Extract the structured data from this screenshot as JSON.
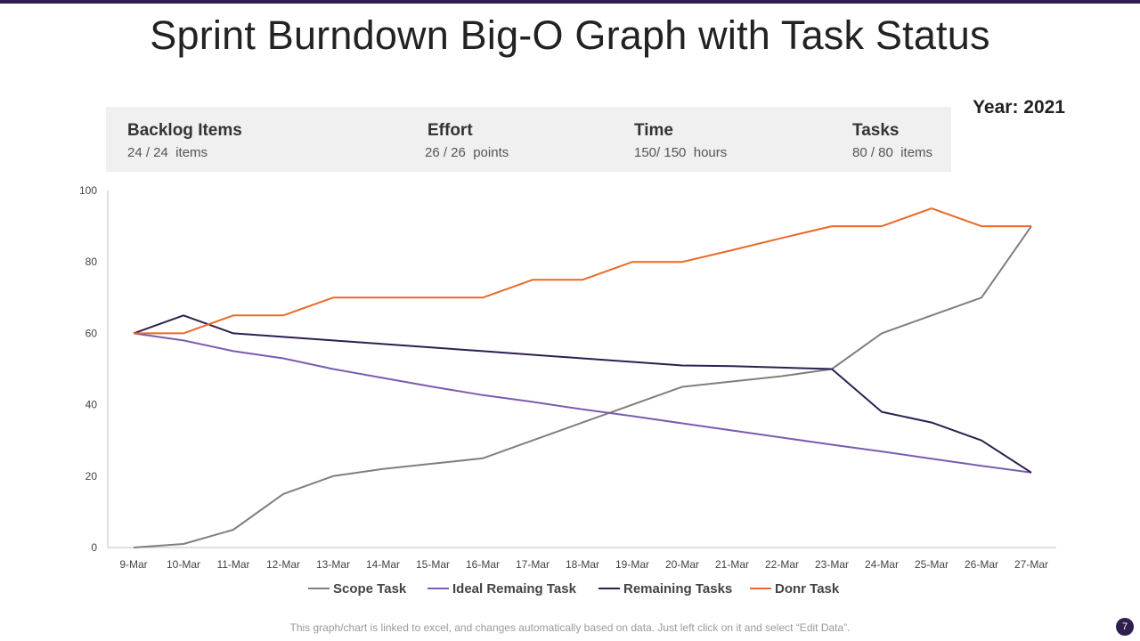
{
  "title": "Sprint Burndown Big-O Graph with Task Status",
  "year_label": "Year: 2021",
  "stats": [
    {
      "label": "Backlog Items",
      "value": "24 / 24  items"
    },
    {
      "label": "Effort",
      "value": "26 / 26  points"
    },
    {
      "label": "Time",
      "value": "150/ 150  hours"
    },
    {
      "label": "Tasks",
      "value": "80 / 80  items"
    }
  ],
  "footer_note": "This graph/chart is linked to excel, and changes automatically based on data. Just left click on it and select “Edit Data”.",
  "page_number": "7",
  "colors": {
    "accent": "#2e1f4f",
    "scope": "#7f7f7f",
    "ideal": "#7b5cb0",
    "remaining": "#2e1f4f",
    "done": "#e8692a"
  },
  "chart_data": {
    "type": "line",
    "title": "",
    "xlabel": "",
    "ylabel": "",
    "ylim": [
      0,
      100
    ],
    "yticks": [
      0,
      20,
      40,
      60,
      80,
      100
    ],
    "grid": false,
    "legend_position": "bottom",
    "categories": [
      "9-Mar",
      "10-Mar",
      "11-Mar",
      "12-Mar",
      "13-Mar",
      "14-Mar",
      "15-Mar",
      "16-Mar",
      "17-Mar",
      "18-Mar",
      "19-Mar",
      "20-Mar",
      "21-Mar",
      "22-Mar",
      "23-Mar",
      "24-Mar",
      "25-Mar",
      "26-Mar",
      "27-Mar"
    ],
    "series": [
      {
        "name": "Scope Task",
        "color": "#7f7f7f",
        "values": [
          0,
          1,
          5,
          15,
          20,
          22,
          23.5,
          25,
          30,
          35,
          40,
          45,
          46.5,
          48,
          50,
          60,
          65,
          70,
          90
        ]
      },
      {
        "name": "Ideal Remaing Task",
        "color": "#7b5cb0",
        "values": [
          60,
          58,
          55,
          53,
          50,
          47.5,
          45,
          42.7,
          40.8,
          38.7,
          36.8,
          34.8,
          32.8,
          30.8,
          28.8,
          26.9,
          24.9,
          22.9,
          21
        ]
      },
      {
        "name": "Remaining Tasks",
        "color": "#2e1f4f",
        "values": [
          60,
          65,
          60,
          59,
          58,
          57,
          56,
          55,
          54,
          53,
          52,
          51,
          50.8,
          50.4,
          50,
          38,
          35,
          30,
          21
        ]
      },
      {
        "name": "Donr Task",
        "color": "#e8692a",
        "values": [
          60,
          60,
          65,
          65,
          70,
          70,
          70,
          70,
          75,
          75,
          80,
          80,
          83.3,
          86.7,
          90,
          90,
          95,
          90,
          90
        ]
      }
    ]
  }
}
